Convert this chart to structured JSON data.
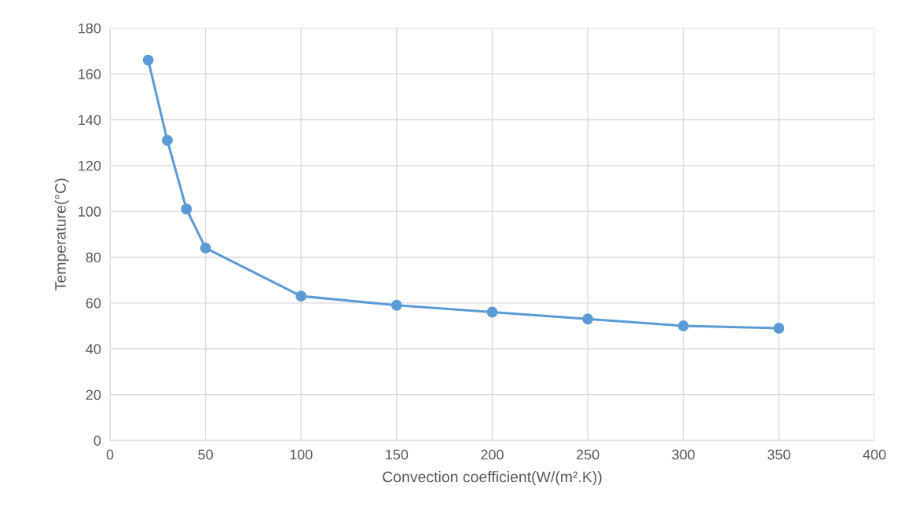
{
  "chart_data": {
    "type": "line",
    "xlabel": "Convection coefficient(W/(m².K))",
    "ylabel": "Temperature(°C)",
    "x": [
      20,
      30,
      40,
      50,
      100,
      150,
      200,
      250,
      300,
      350
    ],
    "series": [
      {
        "color": "#5b9bd5",
        "values": [
          166,
          131,
          101,
          84,
          63,
          59,
          56,
          53,
          50,
          49
        ]
      }
    ],
    "xlim": [
      0,
      400
    ],
    "xticks": [
      0,
      50,
      100,
      150,
      200,
      250,
      300,
      350,
      400
    ],
    "ylim": [
      0,
      180
    ],
    "yticks": [
      0,
      20,
      40,
      60,
      80,
      100,
      120,
      140,
      160,
      180
    ],
    "grid": true,
    "marker": "circle",
    "line_style": "solid"
  }
}
